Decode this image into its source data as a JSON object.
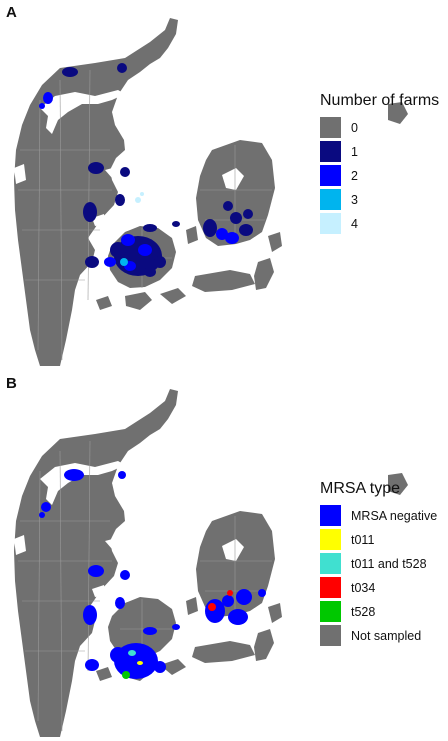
{
  "colors": {
    "land": "#707070",
    "water": "#ffffff",
    "boundary": "#9a9a9a",
    "dark_blue": "#0a0a80",
    "blue": "#0000ff",
    "sky": "#00b4ee",
    "pale": "#c6f0ff",
    "yellow": "#ffff00",
    "cyan": "#40e0d0",
    "red": "#ff0000",
    "green": "#00c800"
  },
  "panel_a": {
    "letter": "A",
    "legend_title": "Number of farms",
    "legend": [
      {
        "label": "0",
        "color": "#707070"
      },
      {
        "label": "1",
        "color": "#0a0a80"
      },
      {
        "label": "2",
        "color": "#0000ff"
      },
      {
        "label": "3",
        "color": "#00b4ee"
      },
      {
        "label": "4",
        "color": "#c6f0ff"
      }
    ]
  },
  "panel_b": {
    "letter": "B",
    "legend_title": "MRSA type",
    "legend": [
      {
        "label": "MRSA negative",
        "color": "#0000ff"
      },
      {
        "label": "t011",
        "color": "#ffff00"
      },
      {
        "label": "t011 and t528",
        "color": "#40e0d0"
      },
      {
        "label": "t034",
        "color": "#ff0000"
      },
      {
        "label": "t528",
        "color": "#00c800"
      },
      {
        "label": "Not sampled",
        "color": "#707070"
      }
    ]
  }
}
